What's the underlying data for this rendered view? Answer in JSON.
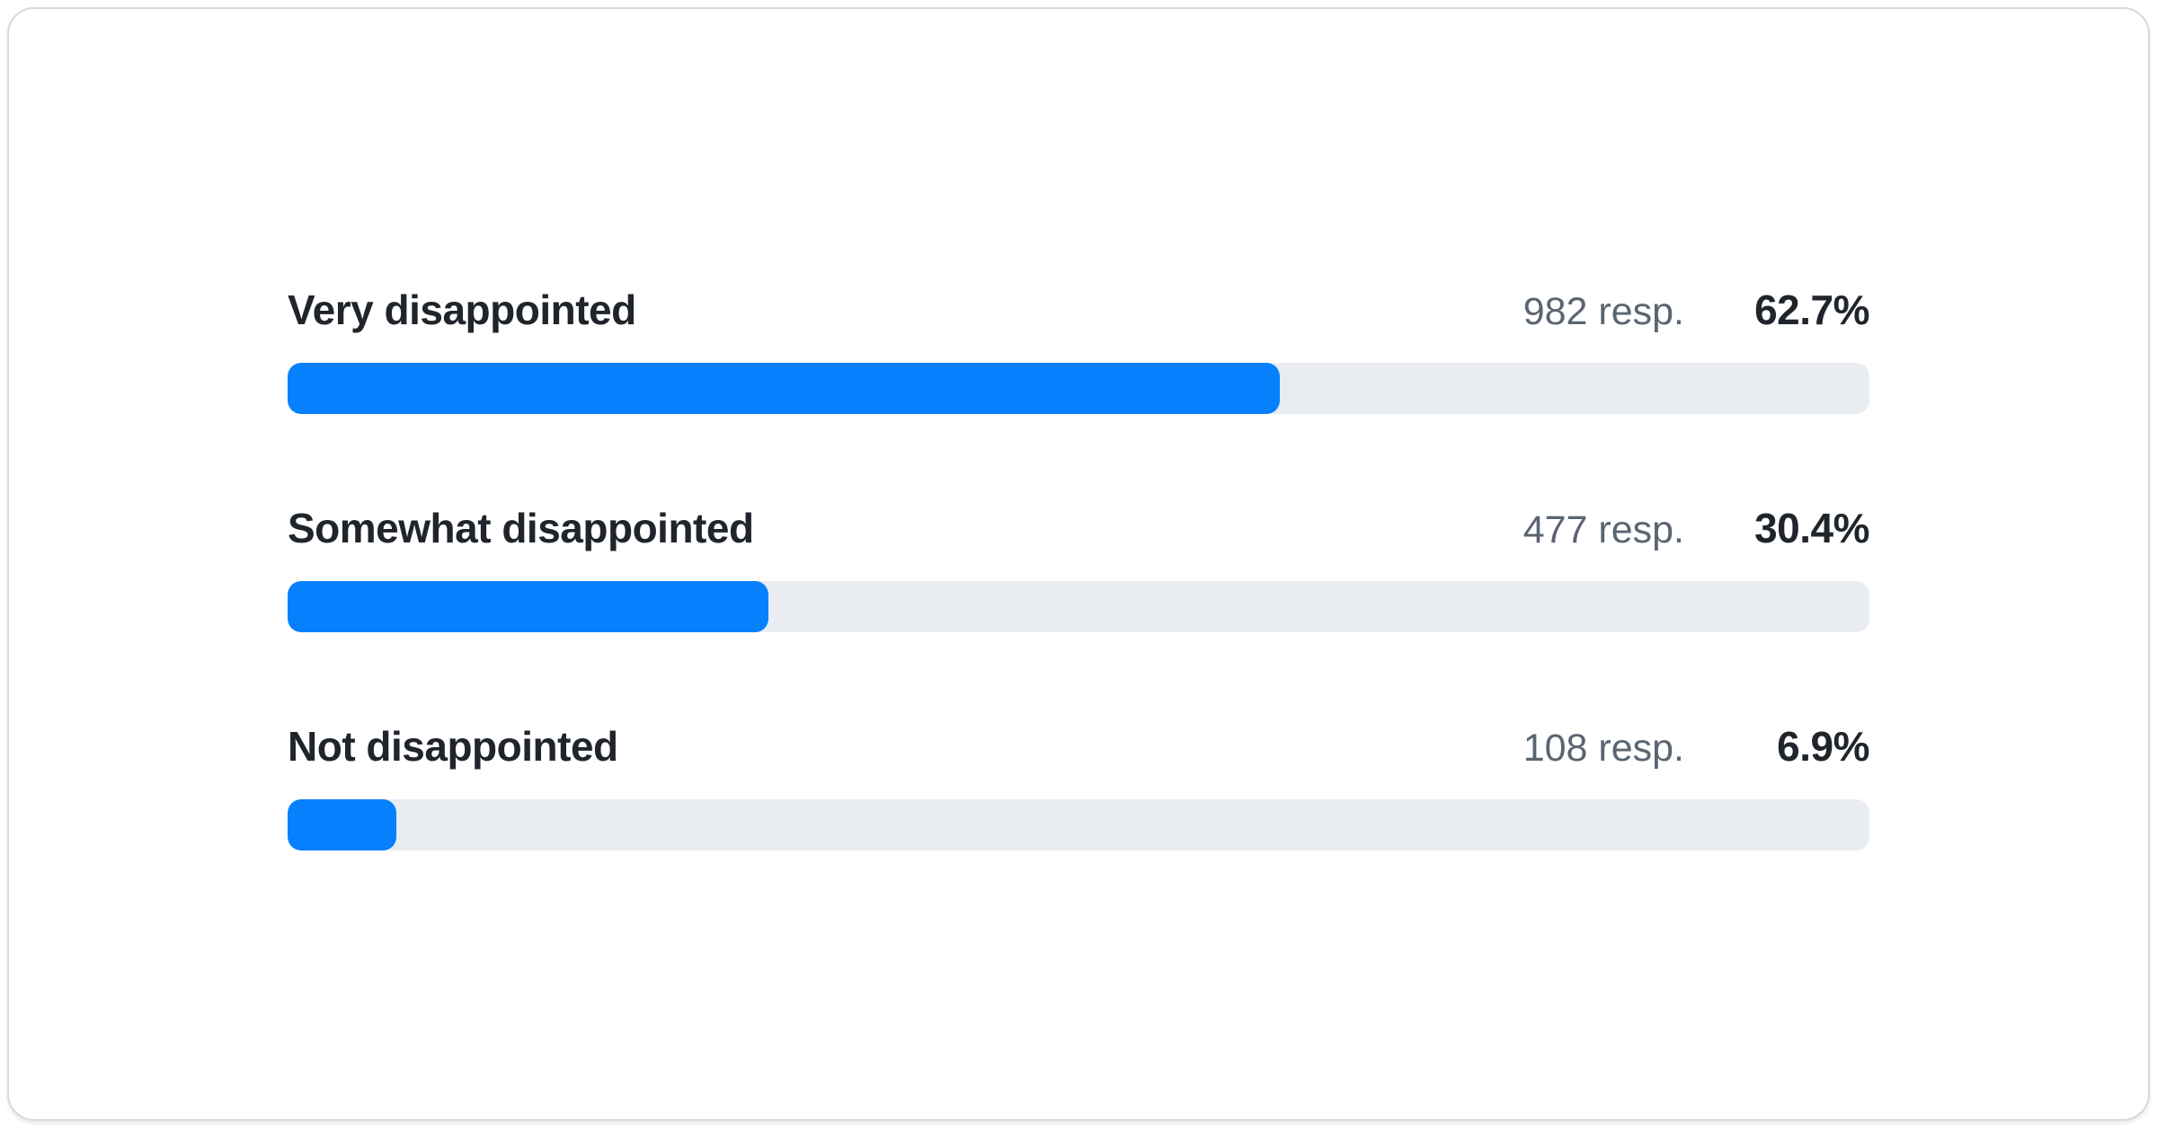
{
  "colors": {
    "bar_fill": "#0680fc",
    "bar_track": "#e9ecf0",
    "label_text": "#20252b",
    "muted_text": "#5b6571",
    "card_border": "#d6dade",
    "card_background": "#ffffff"
  },
  "chart_data": {
    "type": "bar",
    "orientation": "horizontal",
    "title": "",
    "xlabel": "",
    "ylabel": "",
    "xlim": [
      0,
      100
    ],
    "grid": false,
    "legend": false,
    "categories": [
      "Very disappointed",
      "Somewhat disappointed",
      "Not disappointed"
    ],
    "values": [
      62.7,
      30.4,
      6.9
    ],
    "responses": [
      982,
      477,
      108
    ],
    "rows": [
      {
        "label": "Very disappointed",
        "responses_text": "982 resp.",
        "percent_text": "62.7%",
        "percent": 62.7
      },
      {
        "label": "Somewhat disappointed",
        "responses_text": "477 resp.",
        "percent_text": "30.4%",
        "percent": 30.4
      },
      {
        "label": "Not disappointed",
        "responses_text": "108 resp.",
        "percent_text": "6.9%",
        "percent": 6.9
      }
    ]
  }
}
